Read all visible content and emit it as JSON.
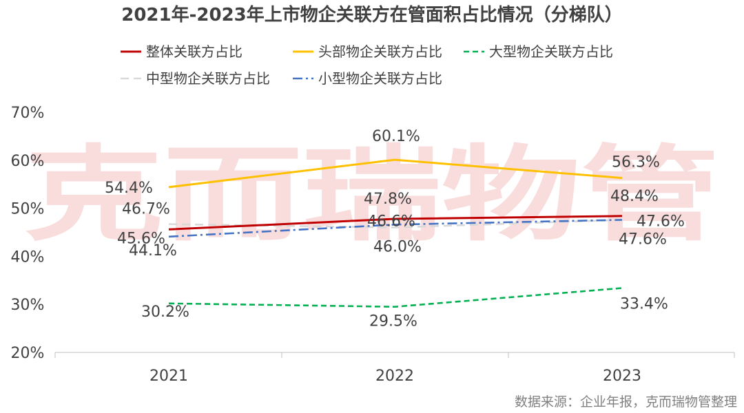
{
  "chart_data": {
    "type": "line",
    "title": "2021年-2023年上市物企关联方在管面积占比情况（分梯队）",
    "categories": [
      "2021",
      "2022",
      "2023"
    ],
    "ylim": [
      0.2,
      0.7
    ],
    "yticks": [
      "20%",
      "30%",
      "40%",
      "50%",
      "60%",
      "70%"
    ],
    "ytick_values": [
      0.2,
      0.3,
      0.4,
      0.5,
      0.6,
      0.7
    ],
    "series": [
      {
        "name": "整体关联方占比",
        "values": [
          0.456,
          0.478,
          0.484
        ],
        "labels": [
          "45.6%",
          "47.8%",
          "48.4%"
        ],
        "color": "#c00000",
        "style": "solid"
      },
      {
        "name": "头部物企关联方占比",
        "values": [
          0.544,
          0.601,
          0.563
        ],
        "labels": [
          "54.4%",
          "60.1%",
          "56.3%"
        ],
        "color": "#ffc000",
        "style": "solid"
      },
      {
        "name": "大型物企关联方占比",
        "values": [
          0.302,
          0.295,
          0.334
        ],
        "labels": [
          "30.2%",
          "29.5%",
          "33.4%"
        ],
        "color": "#00b050",
        "style": "dash"
      },
      {
        "name": "中型物企关联方占比",
        "values": [
          0.467,
          0.46,
          0.476
        ],
        "labels": [
          "46.7%",
          "46.0%",
          "47.6%"
        ],
        "color": "#d9d9d9",
        "style": "longdash"
      },
      {
        "name": "小型物企关联方占比",
        "values": [
          0.441,
          0.466,
          0.476
        ],
        "labels": [
          "44.1%",
          "46.6%",
          "47.6%"
        ],
        "color": "#4472c4",
        "style": "dashdot"
      }
    ],
    "legend_position": "top",
    "grid": false
  },
  "watermark": "克而瑞物管",
  "source": "数据来源：企业年报，克而瑞物管整理"
}
